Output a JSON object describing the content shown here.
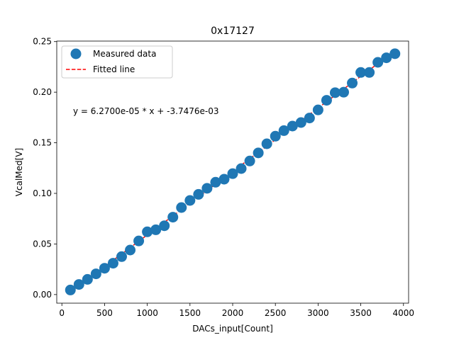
{
  "chart_data": {
    "type": "scatter",
    "title": "0x17127",
    "xlabel": "DACs_input[Count]",
    "ylabel": "VcalMed[V]",
    "xlim": [
      -60,
      4060
    ],
    "ylim": [
      -0.0085,
      0.2505
    ],
    "xticks": [
      0,
      500,
      1000,
      1500,
      2000,
      2500,
      3000,
      3500,
      4000
    ],
    "xtick_labels": [
      "0",
      "500",
      "1000",
      "1500",
      "2000",
      "2500",
      "3000",
      "3500",
      "4000"
    ],
    "yticks": [
      0.0,
      0.05,
      0.1,
      0.15,
      0.2,
      0.25
    ],
    "ytick_labels": [
      "0.00",
      "0.05",
      "0.10",
      "0.15",
      "0.20",
      "0.25"
    ],
    "grid": false,
    "legend_position": "top-left",
    "series": [
      {
        "name": "Measured data",
        "kind": "scatter",
        "color": "#1f77b4",
        "x": [
          100,
          200,
          300,
          400,
          500,
          600,
          700,
          800,
          900,
          1000,
          1100,
          1200,
          1300,
          1400,
          1500,
          1600,
          1700,
          1800,
          1900,
          2000,
          2100,
          2200,
          2300,
          2400,
          2500,
          2600,
          2700,
          2800,
          2900,
          3000,
          3100,
          3200,
          3300,
          3400,
          3500,
          3600,
          3700,
          3800,
          3900
        ],
        "y": [
          0.0045,
          0.01,
          0.015,
          0.0205,
          0.026,
          0.031,
          0.0375,
          0.044,
          0.053,
          0.062,
          0.064,
          0.068,
          0.0765,
          0.086,
          0.093,
          0.099,
          0.105,
          0.111,
          0.114,
          0.1195,
          0.1245,
          0.132,
          0.14,
          0.149,
          0.1565,
          0.162,
          0.1665,
          0.17,
          0.1745,
          0.1825,
          0.192,
          0.1995,
          0.2,
          0.209,
          0.2195,
          0.2195,
          0.2295,
          0.234,
          0.238
        ]
      },
      {
        "name": "Fitted line",
        "kind": "line",
        "style": "dashed",
        "color": "#ff0000",
        "slope": 6.27e-05,
        "intercept": -0.0037476,
        "x_range": [
          100,
          3900
        ]
      }
    ],
    "annotations": [
      {
        "text": "y = 6.2700e-05 * x + -3.7476e-03",
        "x": 100,
        "y": 0.18
      }
    ]
  }
}
